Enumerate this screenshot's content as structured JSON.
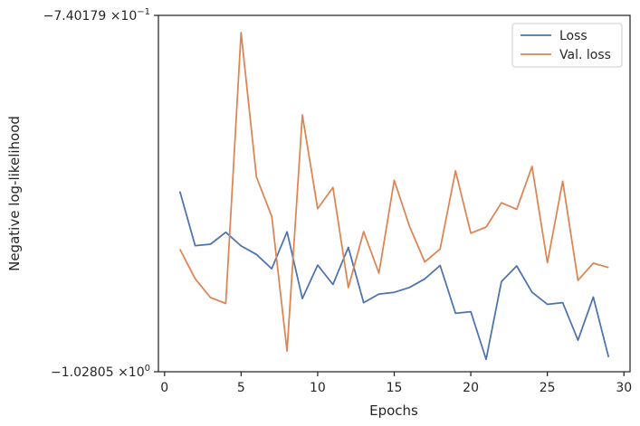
{
  "chart_data": {
    "type": "line",
    "title": "",
    "xlabel": "Epochs",
    "ylabel": "Negative log-likelihood",
    "xlim": [
      -0.4,
      30.4
    ],
    "ylim": [
      -1.02805,
      -0.740179
    ],
    "x_ticks": [
      0,
      5,
      10,
      15,
      20,
      25,
      30
    ],
    "x_tick_labels": [
      "0",
      "5",
      "10",
      "15",
      "20",
      "25",
      "30"
    ],
    "y_ticks": [
      {
        "value": -0.740179,
        "mantissa": "−7.40179",
        "times": "×10",
        "exponent": "−1"
      },
      {
        "value": -1.02805,
        "mantissa": "−1.02805",
        "times": "×10",
        "exponent": "0"
      }
    ],
    "y_scale": "log",
    "grid": false,
    "legend": "top-right",
    "x": [
      1,
      2,
      3,
      4,
      5,
      6,
      7,
      8,
      9,
      10,
      11,
      12,
      13,
      14,
      15,
      16,
      17,
      18,
      19,
      20,
      21,
      22,
      23,
      24,
      25,
      26,
      27,
      28,
      29
    ],
    "series": [
      {
        "name": "Loss",
        "color": "#4c72b0",
        "values": [
          -0.8706,
          -0.9152,
          -0.914,
          -0.904,
          -0.9155,
          -0.9227,
          -0.9349,
          -0.9036,
          -0.961,
          -0.9318,
          -0.9486,
          -0.9167,
          -0.9646,
          -0.957,
          -0.9555,
          -0.9512,
          -0.9437,
          -0.9321,
          -0.9741,
          -0.9727,
          -1.0164,
          -0.9461,
          -0.9325,
          -0.9554,
          -0.9661,
          -0.9646,
          -0.9986,
          -0.9596,
          -1.0143
        ]
      },
      {
        "name": "Val. loss",
        "color": "#dd8452",
        "values": [
          -0.9182,
          -0.9436,
          -0.96,
          -0.9653,
          -0.752,
          -0.8591,
          -0.8909,
          -1.0085,
          -0.8113,
          -0.8846,
          -0.8674,
          -0.9513,
          -0.9035,
          -0.9387,
          -0.8617,
          -0.8992,
          -0.9291,
          -0.9181,
          -0.8543,
          -0.9048,
          -0.8997,
          -0.8798,
          -0.8851,
          -0.8508,
          -0.9297,
          -0.8625,
          -0.9449,
          -0.9302,
          -0.9339
        ]
      }
    ]
  }
}
